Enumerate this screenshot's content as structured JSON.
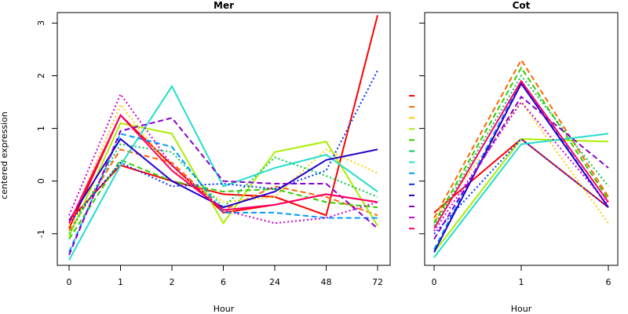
{
  "chart_data": [
    {
      "type": "line",
      "title": "Mer",
      "xlabel": "Hour",
      "ylabel": "centered expression",
      "categories": [
        "0",
        "1",
        "2",
        "6",
        "24",
        "48",
        "72"
      ],
      "yticks": [
        -1,
        0,
        1,
        2,
        3
      ],
      "ylim": [
        -1.6,
        3.2
      ],
      "grid": false,
      "series": [
        {
          "color": "#ff0000",
          "dash": "solid",
          "values": [
            -0.75,
            0.3,
            0.0,
            -0.25,
            -0.3,
            -0.65,
            3.15
          ]
        },
        {
          "color": "#ff0000",
          "dash": "solid",
          "values": [
            -0.9,
            1.25,
            0.3,
            -0.6,
            -0.45,
            -0.25,
            -0.4
          ]
        },
        {
          "color": "#ff6600",
          "dash": "dashed",
          "values": [
            -0.95,
            0.6,
            0.35,
            -0.55,
            -0.1,
            -0.3,
            -0.65
          ]
        },
        {
          "color": "#ffcc00",
          "dash": "dotted",
          "values": [
            -0.85,
            1.45,
            0.2,
            -0.4,
            -0.3,
            0.6,
            0.15
          ]
        },
        {
          "color": "#aaee00",
          "dash": "solid",
          "values": [
            -1.05,
            1.1,
            0.9,
            -0.8,
            0.55,
            0.75,
            -0.85
          ]
        },
        {
          "color": "#33cc00",
          "dash": "dashed",
          "values": [
            -1.1,
            0.4,
            0.0,
            -0.2,
            -0.15,
            -0.4,
            -0.5
          ]
        },
        {
          "color": "#00cc55",
          "dash": "dotted",
          "values": [
            -1.0,
            0.7,
            0.55,
            -0.5,
            0.45,
            0.1,
            -0.3
          ]
        },
        {
          "color": "#22ddcc",
          "dash": "solid",
          "values": [
            -1.5,
            0.3,
            1.8,
            -0.1,
            0.25,
            0.5,
            -0.2
          ]
        },
        {
          "color": "#0099ff",
          "dash": "dashed",
          "values": [
            -1.35,
            0.9,
            0.65,
            -0.6,
            -0.6,
            -0.7,
            -0.7
          ]
        },
        {
          "color": "#0033ff",
          "dash": "dotted",
          "values": [
            -0.8,
            0.35,
            -0.1,
            -0.05,
            -0.15,
            0.2,
            2.1
          ]
        },
        {
          "color": "#2200cc",
          "dash": "solid",
          "values": [
            -0.75,
            0.8,
            0.0,
            -0.5,
            -0.2,
            0.4,
            0.6
          ]
        },
        {
          "color": "#8800cc",
          "dash": "dashed",
          "values": [
            -1.4,
            0.95,
            1.2,
            0.0,
            -0.05,
            -0.05,
            -0.9
          ]
        },
        {
          "color": "#cc00cc",
          "dash": "dotted",
          "values": [
            -0.65,
            1.65,
            0.3,
            -0.55,
            -0.8,
            -0.7,
            -0.4
          ]
        },
        {
          "color": "#ff0066",
          "dash": "solid",
          "values": [
            -0.8,
            1.25,
            0.2,
            -0.55,
            -0.45,
            -0.25,
            -0.4
          ]
        }
      ]
    },
    {
      "type": "line",
      "title": "Cot",
      "xlabel": "Hour",
      "categories": [
        "0",
        "1",
        "6"
      ],
      "yticks": [
        -1,
        0,
        1,
        2,
        3
      ],
      "ylim": [
        -1.6,
        3.2
      ],
      "grid": false,
      "legend": {
        "placement": "left",
        "entries": [
          {
            "color": "#ff0000",
            "dash": "solid"
          },
          {
            "color": "#ff6600",
            "dash": "dashed"
          },
          {
            "color": "#ffcc00",
            "dash": "dotted"
          },
          {
            "color": "#aaee00",
            "dash": "solid"
          },
          {
            "color": "#33cc00",
            "dash": "dashed"
          },
          {
            "color": "#00cc55",
            "dash": "dotted"
          },
          {
            "color": "#22ddcc",
            "dash": "solid"
          },
          {
            "color": "#0099ff",
            "dash": "dashed"
          },
          {
            "color": "#0033ff",
            "dash": "dotted"
          },
          {
            "color": "#2200cc",
            "dash": "solid"
          },
          {
            "color": "#8800cc",
            "dash": "dashed"
          },
          {
            "color": "#cc00cc",
            "dash": "dotted"
          },
          {
            "color": "#ff0066",
            "dash": "solid"
          }
        ]
      },
      "series": [
        {
          "color": "#ff0000",
          "dash": "solid",
          "values": [
            -0.6,
            0.8,
            -0.5
          ]
        },
        {
          "color": "#ff6600",
          "dash": "dashed",
          "values": [
            -0.7,
            2.3,
            -0.3
          ]
        },
        {
          "color": "#ffcc00",
          "dash": "dotted",
          "values": [
            -0.75,
            1.5,
            -0.8
          ]
        },
        {
          "color": "#aaee00",
          "dash": "solid",
          "values": [
            -1.35,
            0.8,
            0.75
          ]
        },
        {
          "color": "#33cc00",
          "dash": "dashed",
          "values": [
            -0.8,
            2.15,
            -0.35
          ]
        },
        {
          "color": "#00cc55",
          "dash": "dotted",
          "values": [
            -0.85,
            2.0,
            -0.1
          ]
        },
        {
          "color": "#22ddcc",
          "dash": "solid",
          "values": [
            -1.45,
            0.7,
            0.9
          ]
        },
        {
          "color": "#0099ff",
          "dash": "dashed",
          "values": [
            -1.3,
            1.9,
            -0.5
          ]
        },
        {
          "color": "#0033ff",
          "dash": "dotted",
          "values": [
            -1.0,
            0.8,
            -0.5
          ]
        },
        {
          "color": "#2200cc",
          "dash": "solid",
          "values": [
            -1.35,
            1.85,
            -0.5
          ]
        },
        {
          "color": "#8800cc",
          "dash": "dashed",
          "values": [
            -1.1,
            1.6,
            0.25
          ]
        },
        {
          "color": "#cc00cc",
          "dash": "dotted",
          "values": [
            -0.95,
            1.5,
            -0.45
          ]
        },
        {
          "color": "#ff0066",
          "dash": "solid",
          "values": [
            -0.9,
            1.9,
            -0.4
          ]
        }
      ]
    }
  ]
}
